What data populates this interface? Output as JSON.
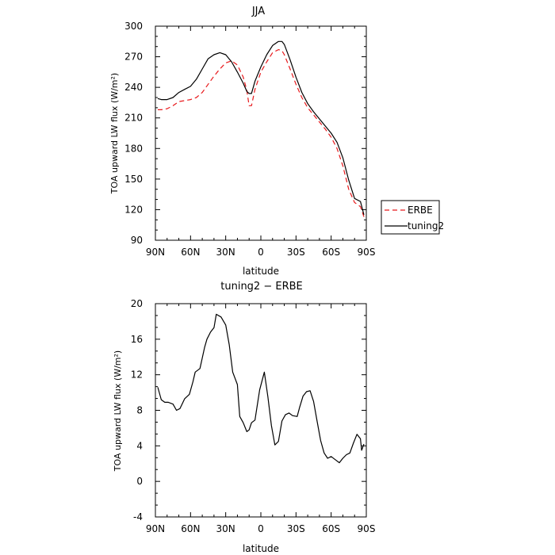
{
  "chart_data": [
    {
      "type": "line",
      "title": "JJA",
      "xlabel": "latitude",
      "ylabel": "TOA upward LW flux (W/m²)",
      "xlim": [
        90,
        -90
      ],
      "ylim": [
        90,
        300
      ],
      "xticks": [
        "90N",
        "60N",
        "30N",
        "0",
        "30S",
        "60S",
        "90S"
      ],
      "yticks": [
        "90",
        "120",
        "150",
        "180",
        "210",
        "240",
        "270",
        "300"
      ],
      "legend_placement": "right-outside",
      "series": [
        {
          "name": "ERBE",
          "color": "#e8191c",
          "style": "dashed",
          "x": [
            88,
            85,
            80,
            75,
            70,
            65,
            60,
            55,
            50,
            45,
            40,
            35,
            30,
            25,
            20,
            15,
            12,
            10,
            8,
            5,
            0,
            -5,
            -10,
            -15,
            -18,
            -20,
            -25,
            -30,
            -35,
            -40,
            -45,
            -50,
            -55,
            -60,
            -65,
            -70,
            -75,
            -80,
            -85,
            -88
          ],
          "y": [
            218,
            218,
            219,
            222,
            226,
            227,
            228,
            230,
            235,
            243,
            251,
            258,
            264,
            266,
            262,
            250,
            237,
            222,
            222,
            238,
            255,
            265,
            274,
            277,
            276,
            272,
            258,
            243,
            230,
            220,
            213,
            206,
            199,
            191,
            180,
            163,
            140,
            127,
            123,
            113
          ]
        },
        {
          "name": "tuning2",
          "color": "#000000",
          "style": "solid",
          "x": [
            88,
            85,
            80,
            75,
            70,
            65,
            60,
            55,
            50,
            45,
            40,
            35,
            30,
            25,
            20,
            15,
            12,
            10,
            8,
            5,
            0,
            -5,
            -10,
            -15,
            -18,
            -20,
            -25,
            -30,
            -35,
            -40,
            -45,
            -50,
            -55,
            -60,
            -65,
            -70,
            -75,
            -80,
            -85,
            -88
          ],
          "y": [
            229,
            228,
            228,
            230,
            235,
            238,
            241,
            248,
            258,
            268,
            272,
            274,
            272,
            265,
            255,
            244,
            236,
            234,
            234,
            246,
            260,
            272,
            281,
            285,
            285,
            282,
            267,
            250,
            235,
            224,
            216,
            209,
            202,
            195,
            186,
            171,
            149,
            131,
            128,
            115
          ]
        }
      ]
    },
    {
      "type": "line",
      "title": "tuning2 − ERBE",
      "xlabel": "latitude",
      "ylabel": "TOA upward LW flux (W/m²)",
      "xlim": [
        90,
        -90
      ],
      "ylim": [
        -4,
        20
      ],
      "xticks": [
        "90N",
        "60N",
        "30N",
        "0",
        "30S",
        "60S",
        "90S"
      ],
      "yticks": [
        "-4",
        "0",
        "4",
        "8",
        "12",
        "16",
        "20"
      ],
      "series": [
        {
          "name": "tuning2",
          "color": "#000000",
          "style": "solid",
          "x": [
            88,
            85,
            82,
            79,
            75,
            72,
            69,
            65,
            61,
            58,
            56,
            52,
            48,
            46,
            43,
            40,
            38,
            34,
            30,
            27,
            24,
            20,
            18,
            15,
            12,
            10,
            8,
            5,
            1,
            -3,
            -6,
            -9,
            -12,
            -15,
            -18,
            -21,
            -24,
            -27,
            -31,
            -33,
            -36,
            -39,
            -42,
            -45,
            -48,
            -51,
            -54,
            -57,
            -60,
            -64,
            -67,
            -70,
            -73,
            -76,
            -79,
            -82,
            -85,
            -86,
            -88
          ],
          "y": [
            10.6,
            9.2,
            8.9,
            8.9,
            8.7,
            8.0,
            8.2,
            9.3,
            9.8,
            11.2,
            12.3,
            12.7,
            15.1,
            16.0,
            16.8,
            17.3,
            18.8,
            18.5,
            17.6,
            15.4,
            12.3,
            10.9,
            7.3,
            6.6,
            5.6,
            5.8,
            6.6,
            6.9,
            10.3,
            12.3,
            9.5,
            6.3,
            4.1,
            4.5,
            6.8,
            7.5,
            7.7,
            7.4,
            7.3,
            8.3,
            9.6,
            10.1,
            10.2,
            9.0,
            6.8,
            4.6,
            3.2,
            2.6,
            2.8,
            2.4,
            2.1,
            2.6,
            3.0,
            3.2,
            4.3,
            5.3,
            4.8,
            3.5,
            4.2
          ]
        }
      ]
    }
  ]
}
